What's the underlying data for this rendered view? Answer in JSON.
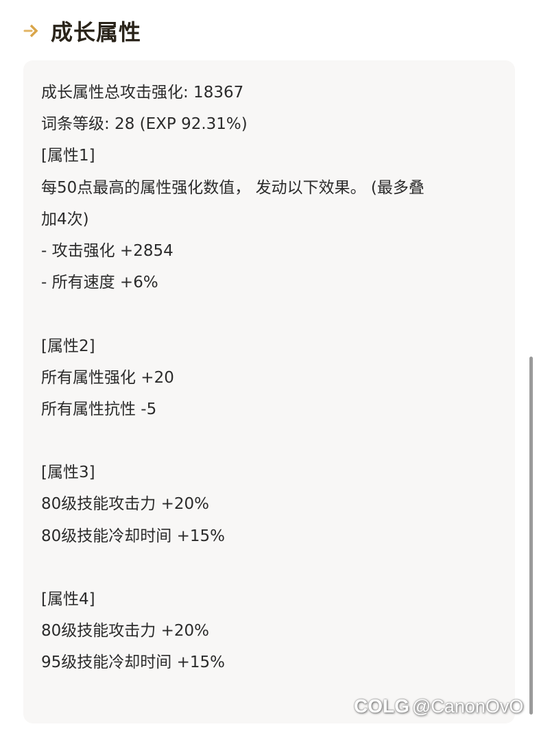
{
  "header": {
    "title": "成长属性",
    "icon": "double-chevron-right-icon",
    "accent": "#d9a54a"
  },
  "card": {
    "lines": [
      "成长属性总攻击强化: 18367",
      "词条等级: 28 (EXP 92.31%)",
      "[属性1]",
      "每50点最高的属性强化数值， 发动以下效果。 (最多叠",
      "加4次)",
      "- 攻击强化 +2854",
      "- 所有速度 +6%",
      "",
      "[属性2]",
      "所有属性强化 +20",
      "所有属性抗性 -5",
      "",
      "[属性3]",
      "80级技能攻击力 +20%",
      "80级技能冷却时间 +15%",
      "",
      "[属性4]",
      "80级技能攻击力 +20%",
      "95级技能冷却时间 +15%"
    ]
  },
  "watermark": {
    "logo": "COLG",
    "handle": "@CanonOvO"
  }
}
